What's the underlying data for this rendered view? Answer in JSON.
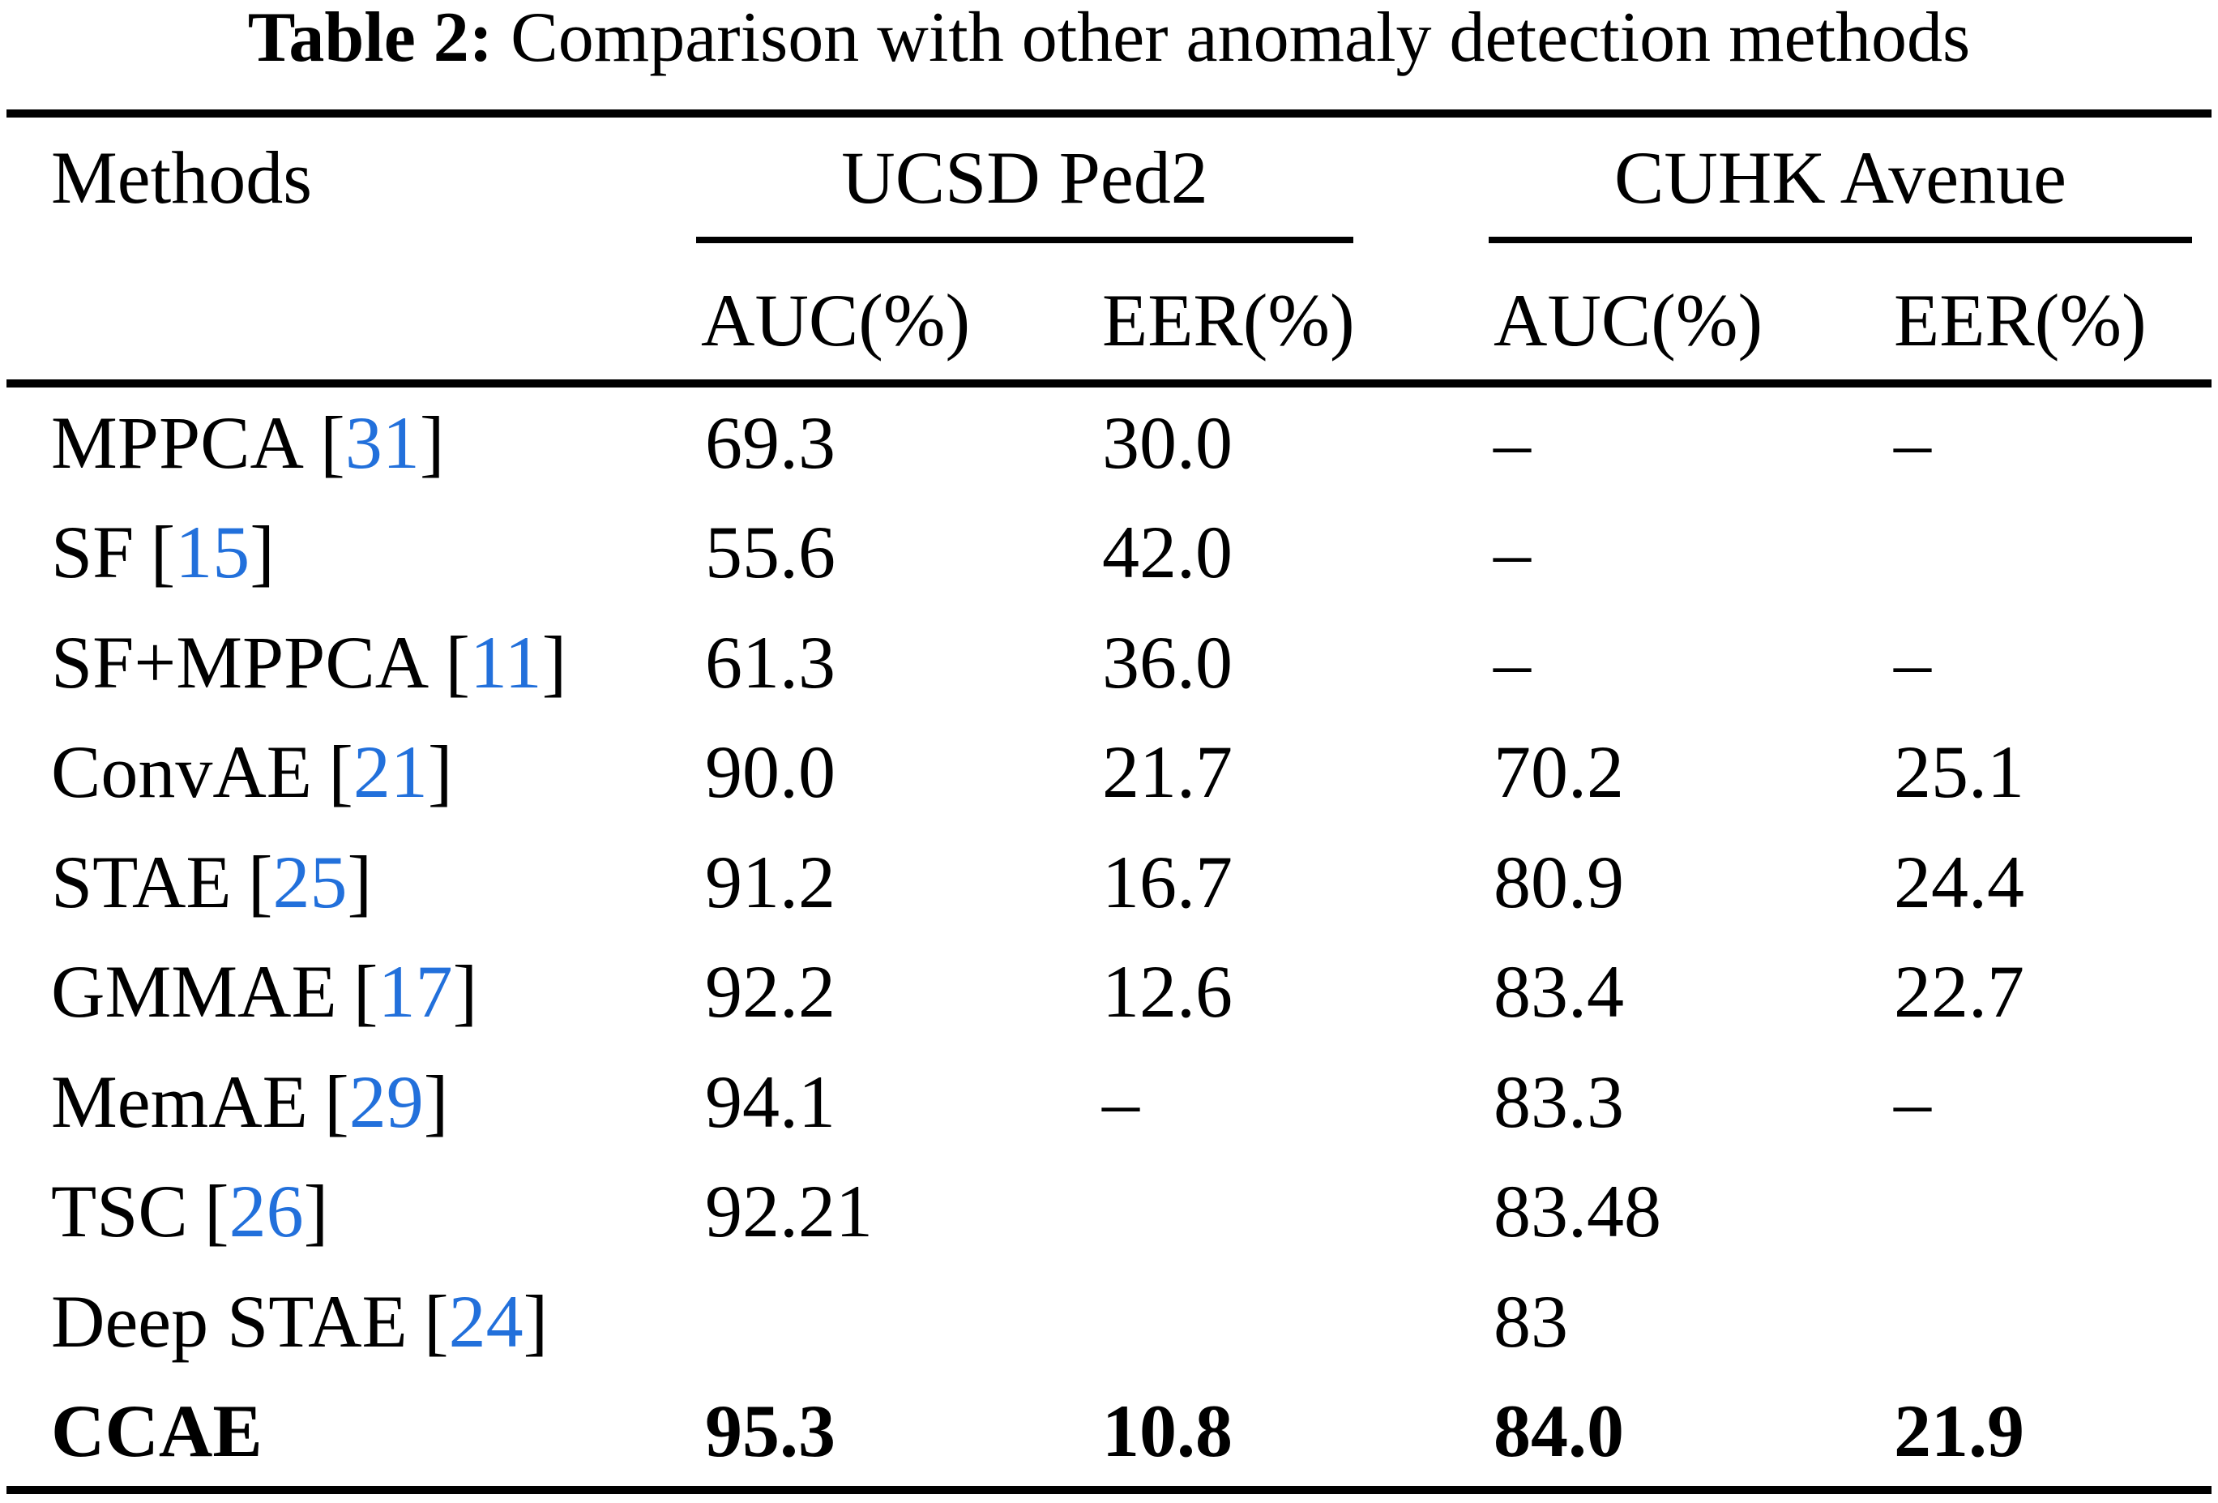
{
  "table": {
    "caption_label": "Table 2:",
    "caption_text": " Comparison with other anomaly detection methods",
    "citation_open": "[",
    "citation_close": "]",
    "link_color": "#2270DB",
    "columns": {
      "methods_label": "Methods",
      "groups": [
        {
          "label": "UCSD Ped2",
          "sub": [
            "AUC(%)",
            "EER(%)"
          ]
        },
        {
          "label": "CUHK Avenue",
          "sub": [
            "AUC(%)",
            "EER(%)"
          ]
        }
      ]
    },
    "rows": [
      {
        "method": "MPPCA",
        "ref": "31",
        "ucsd_auc": "69.3",
        "ucsd_eer": "30.0",
        "cuhk_auc": "–",
        "cuhk_eer": "–",
        "bold": false
      },
      {
        "method": "SF",
        "ref": "15",
        "ucsd_auc": "55.6",
        "ucsd_eer": "42.0",
        "cuhk_auc": "–",
        "cuhk_eer": "",
        "bold": false
      },
      {
        "method": "SF+MPPCA",
        "ref": "11",
        "ucsd_auc": "61.3",
        "ucsd_eer": "36.0",
        "cuhk_auc": "–",
        "cuhk_eer": "–",
        "bold": false
      },
      {
        "method": "ConvAE",
        "ref": "21",
        "ucsd_auc": "90.0",
        "ucsd_eer": "21.7",
        "cuhk_auc": "70.2",
        "cuhk_eer": "25.1",
        "bold": false
      },
      {
        "method": "STAE",
        "ref": "25",
        "ucsd_auc": "91.2",
        "ucsd_eer": "16.7",
        "cuhk_auc": "80.9",
        "cuhk_eer": "24.4",
        "bold": false
      },
      {
        "method": "GMMAE",
        "ref": "17",
        "ucsd_auc": "92.2",
        "ucsd_eer": "12.6",
        "cuhk_auc": "83.4",
        "cuhk_eer": "22.7",
        "bold": false
      },
      {
        "method": "MemAE",
        "ref": "29",
        "ucsd_auc": "94.1",
        "ucsd_eer": "–",
        "cuhk_auc": "83.3",
        "cuhk_eer": "–",
        "bold": false
      },
      {
        "method": "TSC",
        "ref": "26",
        "ucsd_auc": "92.21",
        "ucsd_eer": "",
        "cuhk_auc": "83.48",
        "cuhk_eer": "",
        "bold": false
      },
      {
        "method": "Deep STAE",
        "ref": "24",
        "ucsd_auc": "",
        "ucsd_eer": "",
        "cuhk_auc": "83",
        "cuhk_eer": "",
        "bold": false
      },
      {
        "method": "CCAE",
        "ref": null,
        "ucsd_auc": "95.3",
        "ucsd_eer": "10.8",
        "cuhk_auc": "84.0",
        "cuhk_eer": "21.9",
        "bold": true
      }
    ]
  }
}
